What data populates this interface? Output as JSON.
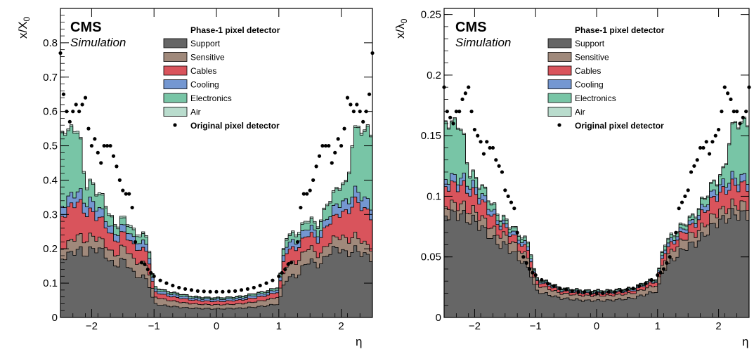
{
  "chart_data": [
    {
      "type": "area",
      "stacked": true,
      "ylabel": "x/X",
      "ylabel_sub": "0",
      "xlabel": "η",
      "xlim": [
        -2.5,
        2.5
      ],
      "ylim": [
        0,
        0.9
      ],
      "y_ticks": [
        {
          "v": 0,
          "label": "0"
        },
        {
          "v": 0.1,
          "label": "0.1"
        },
        {
          "v": 0.2,
          "label": "0.2"
        },
        {
          "v": 0.3,
          "label": "0.3"
        },
        {
          "v": 0.4,
          "label": "0.4"
        },
        {
          "v": 0.5,
          "label": "0.5"
        },
        {
          "v": 0.6,
          "label": "0.6"
        },
        {
          "v": 0.7,
          "label": "0.7"
        },
        {
          "v": 0.8,
          "label": "0.8"
        }
      ],
      "x_ticks": [
        {
          "v": -2,
          "label": "−2"
        },
        {
          "v": -1,
          "label": "−1"
        },
        {
          "v": 0,
          "label": "0"
        },
        {
          "v": 1,
          "label": "1"
        },
        {
          "v": 2,
          "label": "2"
        }
      ],
      "experiment": "CMS",
      "subtitle": "Simulation",
      "legend_title": "Phase-1 pixel detector",
      "legend_position": "top-center",
      "x": [
        0.0,
        0.2,
        0.4,
        0.6,
        0.8,
        1.0,
        1.1,
        1.2,
        1.3,
        1.4,
        1.5,
        1.6,
        1.7,
        1.8,
        1.9,
        2.0,
        2.1,
        2.2,
        2.3,
        2.4,
        2.5
      ],
      "series": [
        {
          "name": "Support",
          "color": "#666666",
          "values": [
            0.025,
            0.026,
            0.027,
            0.03,
            0.034,
            0.04,
            0.11,
            0.12,
            0.12,
            0.15,
            0.17,
            0.15,
            0.16,
            0.19,
            0.2,
            0.2,
            0.18,
            0.2,
            0.19,
            0.18,
            0.17
          ]
        },
        {
          "name": "Sensitive",
          "color": "#a0897b",
          "values": [
            0.012,
            0.012,
            0.013,
            0.015,
            0.017,
            0.02,
            0.04,
            0.04,
            0.04,
            0.04,
            0.04,
            0.03,
            0.03,
            0.03,
            0.03,
            0.04,
            0.04,
            0.04,
            0.04,
            0.03,
            0.03
          ]
        },
        {
          "name": "Cables",
          "color": "#d9545c",
          "values": [
            0.01,
            0.01,
            0.011,
            0.012,
            0.013,
            0.015,
            0.04,
            0.04,
            0.04,
            0.04,
            0.04,
            0.04,
            0.05,
            0.06,
            0.06,
            0.07,
            0.08,
            0.1,
            0.1,
            0.1,
            0.09
          ]
        },
        {
          "name": "Cooling",
          "color": "#7497d1",
          "values": [
            0.006,
            0.006,
            0.006,
            0.007,
            0.007,
            0.008,
            0.02,
            0.02,
            0.02,
            0.02,
            0.02,
            0.02,
            0.02,
            0.02,
            0.03,
            0.03,
            0.03,
            0.03,
            0.03,
            0.03,
            0.03
          ]
        },
        {
          "name": "Electronics",
          "color": "#78c5a6",
          "values": [
            0.004,
            0.004,
            0.004,
            0.005,
            0.005,
            0.006,
            0.02,
            0.02,
            0.02,
            0.02,
            0.02,
            0.02,
            0.03,
            0.04,
            0.04,
            0.05,
            0.05,
            0.18,
            0.18,
            0.21,
            0.2
          ]
        },
        {
          "name": "Air",
          "color": "#b9dccd",
          "values": [
            0.001,
            0.001,
            0.001,
            0.001,
            0.001,
            0.001,
            0.005,
            0.005,
            0.005,
            0.005,
            0.005,
            0.005,
            0.005,
            0.005,
            0.005,
            0.005,
            0.005,
            0.005,
            0.005,
            0.005,
            0.005
          ]
        }
      ],
      "points": {
        "name": "Original pixel detector",
        "x": [
          0.0,
          0.1,
          0.2,
          0.3,
          0.4,
          0.5,
          0.6,
          0.7,
          0.8,
          0.9,
          1.0,
          1.05,
          1.1,
          1.15,
          1.2,
          1.3,
          1.35,
          1.4,
          1.45,
          1.5,
          1.55,
          1.6,
          1.65,
          1.7,
          1.75,
          1.8,
          1.85,
          1.9,
          1.95,
          2.0,
          2.05,
          2.1,
          2.15,
          2.2,
          2.25,
          2.3,
          2.35,
          2.4,
          2.45,
          2.5
        ],
        "y": [
          0.075,
          0.075,
          0.076,
          0.077,
          0.08,
          0.083,
          0.087,
          0.093,
          0.1,
          0.108,
          0.12,
          0.13,
          0.14,
          0.155,
          0.16,
          0.22,
          0.32,
          0.36,
          0.36,
          0.37,
          0.4,
          0.44,
          0.47,
          0.5,
          0.5,
          0.5,
          0.45,
          0.48,
          0.52,
          0.5,
          0.55,
          0.64,
          0.62,
          0.6,
          0.62,
          0.6,
          0.57,
          0.6,
          0.65,
          0.77
        ]
      }
    },
    {
      "type": "area",
      "stacked": true,
      "ylabel": "x/λ",
      "ylabel_sub": "0",
      "xlabel": "η",
      "xlim": [
        -2.5,
        2.5
      ],
      "ylim": [
        0,
        0.255
      ],
      "y_ticks": [
        {
          "v": 0,
          "label": "0"
        },
        {
          "v": 0.05,
          "label": "0.05"
        },
        {
          "v": 0.1,
          "label": "0.1"
        },
        {
          "v": 0.15,
          "label": "0.15"
        },
        {
          "v": 0.2,
          "label": "0.2"
        },
        {
          "v": 0.25,
          "label": "0.25"
        }
      ],
      "x_ticks": [
        {
          "v": -2,
          "label": "−2"
        },
        {
          "v": -1,
          "label": "−1"
        },
        {
          "v": 0,
          "label": "0"
        },
        {
          "v": 1,
          "label": "1"
        },
        {
          "v": 2,
          "label": "2"
        }
      ],
      "experiment": "CMS",
      "subtitle": "Simulation",
      "legend_title": "Phase-1 pixel detector",
      "legend_position": "top-center",
      "x": [
        0.0,
        0.2,
        0.4,
        0.6,
        0.8,
        1.0,
        1.1,
        1.2,
        1.3,
        1.4,
        1.5,
        1.6,
        1.7,
        1.8,
        1.9,
        2.0,
        2.1,
        2.2,
        2.3,
        2.4,
        2.5
      ],
      "series": [
        {
          "name": "Support",
          "color": "#666666",
          "values": [
            0.014,
            0.014,
            0.015,
            0.016,
            0.019,
            0.022,
            0.04,
            0.045,
            0.05,
            0.055,
            0.06,
            0.06,
            0.065,
            0.07,
            0.075,
            0.08,
            0.08,
            0.085,
            0.085,
            0.085,
            0.085
          ]
        },
        {
          "name": "Sensitive",
          "color": "#a0897b",
          "values": [
            0.004,
            0.004,
            0.004,
            0.004,
            0.005,
            0.005,
            0.008,
            0.008,
            0.008,
            0.008,
            0.008,
            0.008,
            0.008,
            0.008,
            0.008,
            0.008,
            0.008,
            0.008,
            0.008,
            0.008,
            0.008
          ]
        },
        {
          "name": "Cables",
          "color": "#d9545c",
          "values": [
            0.002,
            0.002,
            0.002,
            0.002,
            0.003,
            0.003,
            0.006,
            0.006,
            0.006,
            0.006,
            0.006,
            0.008,
            0.01,
            0.012,
            0.014,
            0.014,
            0.016,
            0.016,
            0.016,
            0.016,
            0.016
          ]
        },
        {
          "name": "Cooling",
          "color": "#7497d1",
          "values": [
            0.001,
            0.001,
            0.001,
            0.001,
            0.001,
            0.001,
            0.003,
            0.003,
            0.003,
            0.003,
            0.003,
            0.003,
            0.004,
            0.005,
            0.005,
            0.006,
            0.006,
            0.006,
            0.006,
            0.006,
            0.006
          ]
        },
        {
          "name": "Electronics",
          "color": "#78c5a6",
          "values": [
            0.001,
            0.001,
            0.001,
            0.001,
            0.001,
            0.001,
            0.003,
            0.003,
            0.003,
            0.003,
            0.003,
            0.004,
            0.005,
            0.006,
            0.007,
            0.007,
            0.01,
            0.04,
            0.045,
            0.045,
            0.045
          ]
        },
        {
          "name": "Air",
          "color": "#b9dccd",
          "values": [
            0.0005,
            0.0005,
            0.0005,
            0.0005,
            0.0005,
            0.0005,
            0.001,
            0.001,
            0.001,
            0.001,
            0.001,
            0.001,
            0.001,
            0.001,
            0.001,
            0.001,
            0.001,
            0.001,
            0.001,
            0.001,
            0.001
          ]
        }
      ],
      "points": {
        "name": "Original pixel detector",
        "x": [
          0.0,
          0.1,
          0.2,
          0.3,
          0.4,
          0.5,
          0.6,
          0.7,
          0.8,
          0.9,
          1.0,
          1.05,
          1.1,
          1.15,
          1.2,
          1.3,
          1.35,
          1.4,
          1.45,
          1.5,
          1.55,
          1.6,
          1.65,
          1.7,
          1.75,
          1.8,
          1.85,
          1.9,
          1.95,
          2.0,
          2.05,
          2.1,
          2.15,
          2.2,
          2.25,
          2.3,
          2.35,
          2.4,
          2.45,
          2.5
        ],
        "y": [
          0.02,
          0.02,
          0.021,
          0.021,
          0.022,
          0.023,
          0.024,
          0.026,
          0.028,
          0.031,
          0.035,
          0.037,
          0.04,
          0.045,
          0.05,
          0.07,
          0.09,
          0.095,
          0.1,
          0.105,
          0.12,
          0.125,
          0.13,
          0.14,
          0.14,
          0.145,
          0.135,
          0.145,
          0.15,
          0.155,
          0.17,
          0.19,
          0.185,
          0.18,
          0.17,
          0.17,
          0.16,
          0.165,
          0.17,
          0.19
        ]
      }
    }
  ]
}
